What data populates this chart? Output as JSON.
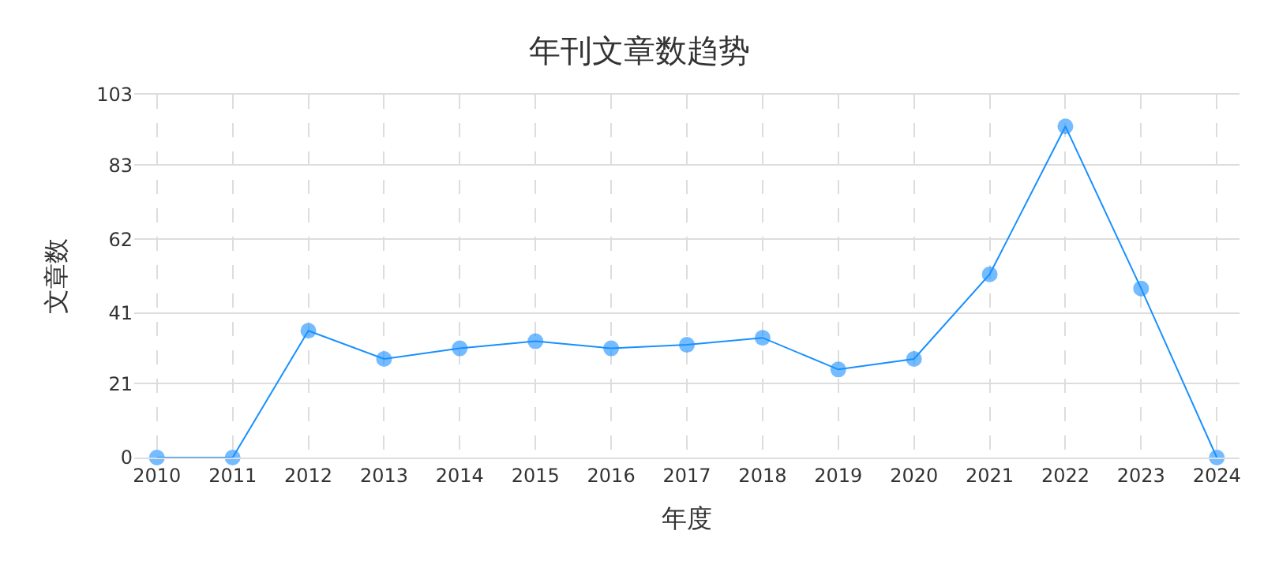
{
  "chart_data": {
    "type": "line",
    "title": "年刊文章数趋势",
    "xlabel": "年度",
    "ylabel": "文章数",
    "categories": [
      "2010",
      "2011",
      "2012",
      "2013",
      "2014",
      "2015",
      "2016",
      "2017",
      "2018",
      "2019",
      "2020",
      "2021",
      "2022",
      "2023",
      "2024"
    ],
    "series": [
      {
        "color": "#1890ff",
        "values": [
          0,
          0,
          36,
          28,
          31,
          33,
          31,
          32,
          34,
          25,
          28,
          52,
          94,
          48,
          0
        ]
      }
    ],
    "ylim": [
      0,
      103
    ],
    "yticks": [
      0,
      21,
      41,
      62,
      83,
      103
    ],
    "grid": true,
    "marker": "circle",
    "line_style": "solid"
  }
}
